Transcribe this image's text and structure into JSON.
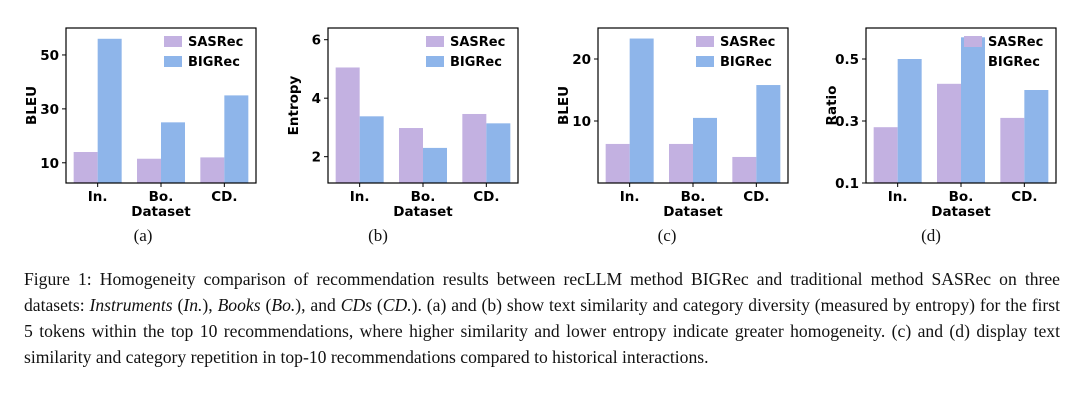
{
  "colors": {
    "SASRec": "#C3B1E1",
    "BIGRec": "#8EB5EA"
  },
  "chart_data": [
    {
      "type": "bar",
      "categories": [
        "In.",
        "Bo.",
        "CD."
      ],
      "series": [
        {
          "name": "SASRec",
          "values": [
            14,
            11.5,
            12
          ]
        },
        {
          "name": "BIGRec",
          "values": [
            56,
            25,
            35
          ]
        }
      ],
      "xlabel": "Dataset",
      "ylabel": "BLEU",
      "ylim": [
        2.5,
        60
      ],
      "yticks": [
        10,
        30,
        50
      ],
      "legend": "top-right",
      "grid": false,
      "sublabel": "(a)"
    },
    {
      "type": "bar",
      "categories": [
        "In.",
        "Bo.",
        "CD."
      ],
      "series": [
        {
          "name": "SASRec",
          "values": [
            5.05,
            2.98,
            3.46
          ]
        },
        {
          "name": "BIGRec",
          "values": [
            3.38,
            2.3,
            3.14
          ]
        }
      ],
      "xlabel": "Dataset",
      "ylabel": "Entropy",
      "ylim": [
        1.1,
        6.4
      ],
      "yticks": [
        2,
        4,
        6
      ],
      "legend": "top-right",
      "grid": false,
      "sublabel": "(b)"
    },
    {
      "type": "bar",
      "categories": [
        "In.",
        "Bo.",
        "CD."
      ],
      "series": [
        {
          "name": "SASRec",
          "values": [
            6.3,
            6.3,
            4.2
          ]
        },
        {
          "name": "BIGRec",
          "values": [
            23.3,
            10.5,
            15.8
          ]
        }
      ],
      "xlabel": "Dataset",
      "ylabel": "BLEU",
      "ylim": [
        0,
        25
      ],
      "yticks": [
        10,
        20
      ],
      "legend": "top-right",
      "grid": false,
      "sublabel": "(c)"
    },
    {
      "type": "bar",
      "categories": [
        "In.",
        "Bo.",
        "CD."
      ],
      "series": [
        {
          "name": "SASRec",
          "values": [
            0.28,
            0.42,
            0.31
          ]
        },
        {
          "name": "BIGRec",
          "values": [
            0.5,
            0.57,
            0.4
          ]
        }
      ],
      "xlabel": "Dataset",
      "ylabel": "Ratio",
      "ylim": [
        0.1,
        0.6
      ],
      "yticks": [
        0.1,
        0.3,
        0.5
      ],
      "legend": "top-right",
      "grid": false,
      "sublabel": "(d)"
    }
  ],
  "caption": {
    "prefix": "Figure 1: Homogeneity comparison of recommendation results between recLLM method BIGRec and traditional method SASRec on three datasets: ",
    "ds1": "Instruments",
    "sep1": " (",
    "ab1": "In.",
    "sep2": "), ",
    "ds2": "Books",
    "sep3": " (",
    "ab2": "Bo.",
    "sep4": "), and ",
    "ds3": "CDs",
    "sep5": " (",
    "ab3": "CD.",
    "rest": "). (a) and (b) show text similarity and category diversity (measured by entropy) for the first 5 tokens within the top 10 recommendations, where higher similarity and lower entropy indicate greater homogeneity. (c) and (d) display text similarity and category repetition in top-10 recommendations compared to historical interactions."
  }
}
